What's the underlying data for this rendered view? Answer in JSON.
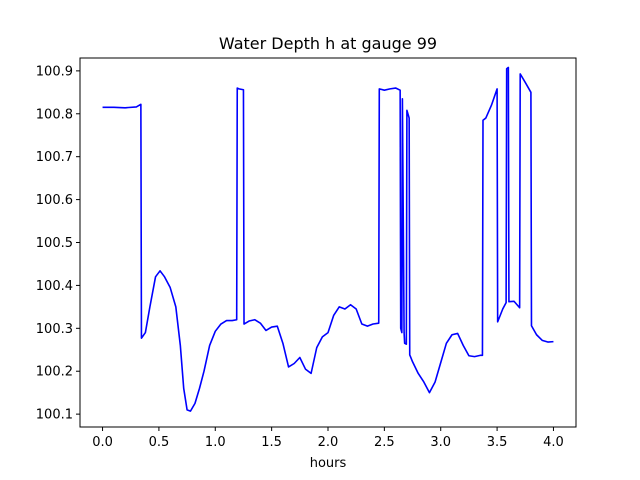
{
  "chart_data": {
    "type": "line",
    "title": "Water Depth h at gauge 99",
    "xlabel": "hours",
    "ylabel": "",
    "xlim": [
      -0.2,
      4.2
    ],
    "ylim": [
      100.07,
      100.93
    ],
    "xticks": [
      0.0,
      0.5,
      1.0,
      1.5,
      2.0,
      2.5,
      3.0,
      3.5,
      4.0
    ],
    "xtick_labels": [
      "0.0",
      "0.5",
      "1.0",
      "1.5",
      "2.0",
      "2.5",
      "3.0",
      "3.5",
      "4.0"
    ],
    "yticks": [
      100.1,
      100.2,
      100.3,
      100.4,
      100.5,
      100.6,
      100.7,
      100.8,
      100.9
    ],
    "ytick_labels": [
      "100.1",
      "100.2",
      "100.3",
      "100.4",
      "100.5",
      "100.6",
      "100.7",
      "100.8",
      "100.9"
    ],
    "grid": false,
    "series": [
      {
        "color": "#0000ff",
        "x": [
          0.0,
          0.1,
          0.2,
          0.3,
          0.34,
          0.345,
          0.38,
          0.42,
          0.47,
          0.51,
          0.55,
          0.6,
          0.65,
          0.69,
          0.72,
          0.75,
          0.78,
          0.82,
          0.86,
          0.9,
          0.95,
          1.0,
          1.05,
          1.1,
          1.15,
          1.19,
          1.195,
          1.21,
          1.25,
          1.255,
          1.3,
          1.35,
          1.4,
          1.45,
          1.5,
          1.55,
          1.6,
          1.65,
          1.7,
          1.75,
          1.8,
          1.85,
          1.9,
          1.95,
          2.0,
          2.05,
          2.1,
          2.15,
          2.2,
          2.25,
          2.3,
          2.35,
          2.4,
          2.45,
          2.455,
          2.5,
          2.55,
          2.6,
          2.64,
          2.645,
          2.655,
          2.66,
          2.675,
          2.68,
          2.695,
          2.7,
          2.72,
          2.725,
          2.73,
          2.75,
          2.8,
          2.85,
          2.9,
          2.95,
          3.0,
          3.05,
          3.1,
          3.15,
          3.2,
          3.25,
          3.3,
          3.35,
          3.37,
          3.375,
          3.4,
          3.45,
          3.5,
          3.505,
          3.55,
          3.58,
          3.585,
          3.6,
          3.605,
          3.65,
          3.7,
          3.705,
          3.75,
          3.8,
          3.805,
          3.85,
          3.9,
          3.95,
          4.0
        ],
        "y": [
          100.815,
          100.815,
          100.814,
          100.816,
          100.822,
          100.277,
          100.29,
          100.35,
          100.42,
          100.434,
          100.42,
          100.395,
          100.35,
          100.26,
          100.16,
          100.11,
          100.107,
          100.125,
          100.16,
          100.2,
          100.26,
          100.293,
          100.31,
          100.318,
          100.318,
          100.32,
          100.86,
          100.858,
          100.856,
          100.31,
          100.317,
          100.32,
          100.312,
          100.295,
          100.303,
          100.305,
          100.265,
          100.21,
          100.218,
          100.232,
          100.205,
          100.195,
          100.255,
          100.28,
          100.29,
          100.33,
          100.35,
          100.345,
          100.355,
          100.345,
          100.31,
          100.305,
          100.31,
          100.312,
          100.858,
          100.855,
          100.858,
          100.86,
          100.855,
          100.3,
          100.29,
          100.835,
          100.29,
          100.265,
          100.263,
          100.808,
          100.79,
          100.238,
          100.235,
          100.222,
          100.195,
          100.175,
          100.15,
          100.175,
          100.22,
          100.265,
          100.285,
          100.288,
          100.26,
          100.236,
          100.234,
          100.237,
          100.237,
          100.785,
          100.79,
          100.82,
          100.858,
          100.315,
          100.345,
          100.36,
          100.905,
          100.908,
          100.362,
          100.363,
          100.348,
          100.893,
          100.873,
          100.85,
          100.306,
          100.285,
          100.272,
          100.268,
          100.269
        ]
      }
    ]
  }
}
